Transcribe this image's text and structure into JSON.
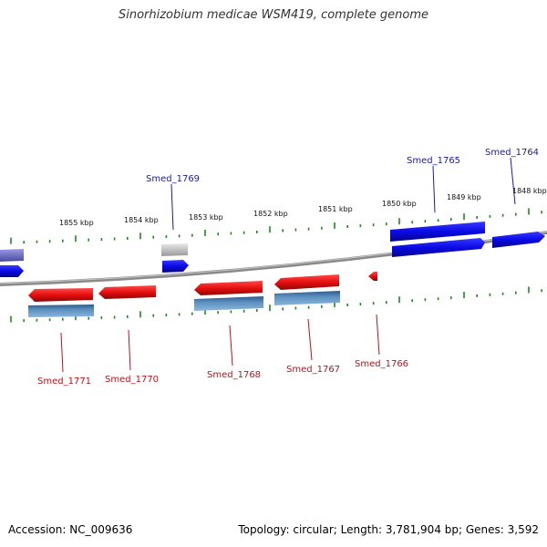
{
  "header": {
    "title": "Sinorhizobium medicae WSM419, complete genome"
  },
  "footer": {
    "accession": "Accession: NC_009636",
    "topology": "Topology: circular; Length: 3,781,904 bp; Genes: 3,592"
  },
  "ruler": {
    "ticks_top": [
      "1855 kbp",
      "1854 kbp",
      "1853 kbp",
      "1852 kbp",
      "1851 kbp",
      "1850 kbp",
      "1849 kbp",
      "1848 kbp"
    ]
  },
  "genes": {
    "forward": [
      "Smed_1769",
      "Smed_1765",
      "Smed_1764"
    ],
    "reverse": [
      "Smed_1771",
      "Smed_1770",
      "Smed_1768",
      "Smed_1767",
      "Smed_1766"
    ]
  },
  "colors": {
    "forward_gene": "#0a0ae6",
    "forward_gene_dim": "#7070d0",
    "reverse_gene": "#e80f0f",
    "cds_steel": "#4a7fb0",
    "pseudo_gray": "#b5b5b5",
    "backbone": "#8a8a8a",
    "tick": "#1a8a1a",
    "fwd_label": "#1a1aa8",
    "rev_label": "#c0101a"
  }
}
